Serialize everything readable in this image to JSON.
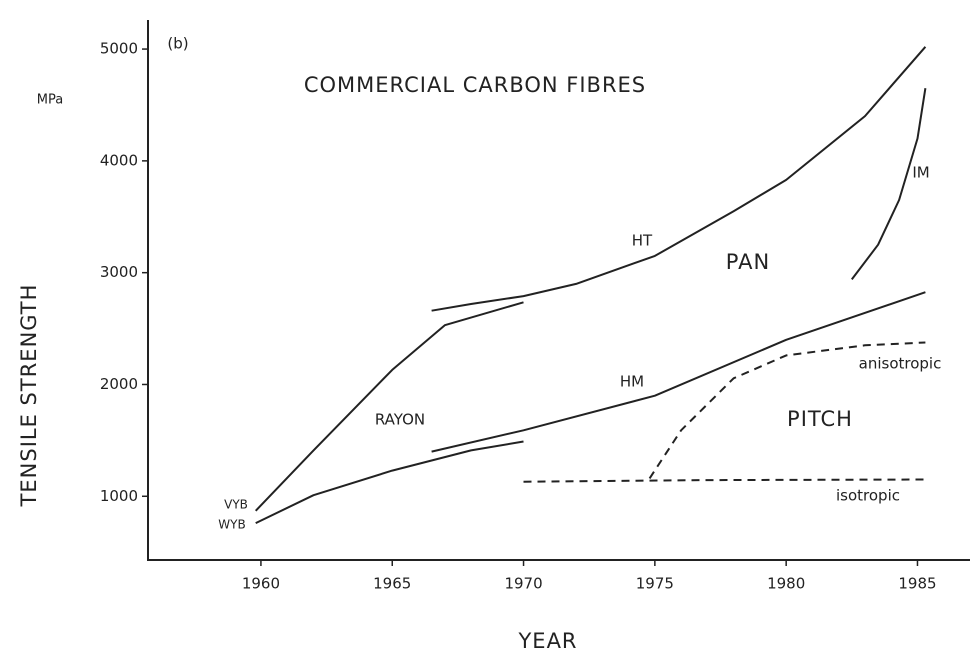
{
  "chart_data": {
    "type": "line",
    "title": "COMMERCIAL CARBON FIBRES",
    "panel_label": "(b)",
    "x_label": "YEAR",
    "y_label": "TENSILE STRENGTH",
    "y_unit": "MPa",
    "annotations": [
      "RAYON",
      "PAN",
      "PITCH"
    ],
    "xlim": [
      1955.7,
      1987
    ],
    "ylim": [
      430,
      5260
    ],
    "xticks": [
      1960,
      1965,
      1970,
      1975,
      1980,
      1985
    ],
    "yticks": [
      1000,
      2000,
      3000,
      4000,
      5000
    ],
    "grid": false,
    "series": [
      {
        "name": "HT",
        "color": "#222222",
        "dashed": false,
        "x": [
          1966.5,
          1968,
          1970,
          1972,
          1975,
          1978,
          1980,
          1983,
          1985.3
        ],
        "values": [
          2660,
          2720,
          2790,
          2900,
          3150,
          3550,
          3830,
          4400,
          5020
        ]
      },
      {
        "name": "IM",
        "color": "#222222",
        "dashed": false,
        "x": [
          1982.5,
          1983.5,
          1984.3,
          1985,
          1985.3
        ],
        "values": [
          2940,
          3250,
          3650,
          4200,
          4650
        ]
      },
      {
        "name": "VYB",
        "color": "#222222",
        "dashed": false,
        "x": [
          1959.8,
          1962,
          1965,
          1967,
          1970
        ],
        "values": [
          870,
          1410,
          2130,
          2530,
          2735
        ]
      },
      {
        "name": "WYB",
        "color": "#222222",
        "dashed": false,
        "x": [
          1959.8,
          1962,
          1965,
          1968,
          1970
        ],
        "values": [
          760,
          1010,
          1230,
          1410,
          1490
        ]
      },
      {
        "name": "HM",
        "color": "#222222",
        "dashed": false,
        "x": [
          1966.5,
          1970,
          1975,
          1980,
          1985.3
        ],
        "values": [
          1400,
          1590,
          1900,
          2400,
          2825
        ]
      },
      {
        "name": "anisotropic",
        "color": "#222222",
        "dashed": true,
        "x": [
          1974.8,
          1976,
          1978,
          1980,
          1983,
          1985.3
        ],
        "values": [
          1160,
          1590,
          2055,
          2260,
          2350,
          2375
        ]
      },
      {
        "name": "isotropic",
        "color": "#222222",
        "dashed": true,
        "x": [
          1970,
          1977,
          1985.3
        ],
        "values": [
          1130,
          1145,
          1150
        ]
      }
    ]
  }
}
